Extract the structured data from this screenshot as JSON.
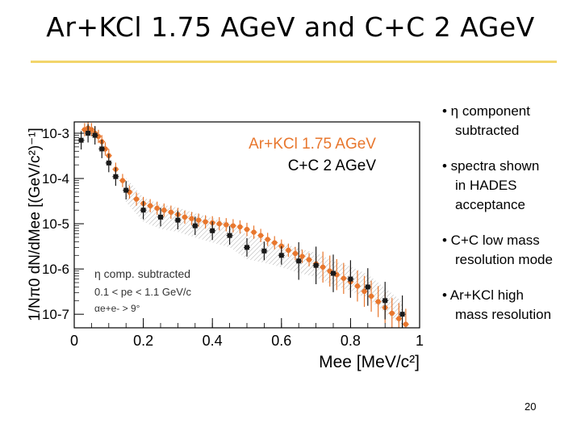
{
  "slide": {
    "title": "Ar+KCl  1.75 AGeV and C+C 2 AGeV",
    "page_number": "20",
    "bullets": [
      {
        "lines": [
          "η component",
          "subtracted"
        ]
      },
      {
        "lines": [
          "spectra shown",
          "in  HADES",
          "acceptance"
        ]
      },
      {
        "lines": [
          "C+C low mass",
          "resolution mode"
        ]
      },
      {
        "lines": [
          "Ar+KCl high",
          "mass resolution"
        ]
      }
    ]
  },
  "chart_data": {
    "type": "scatter",
    "xlabel": "Mee [MeV/c²]",
    "ylabel": "1/Nπ0 dN/dMee [(GeV/c²)⁻¹]",
    "xlim": [
      0,
      1
    ],
    "ylim_log10": [
      -7.3,
      -2.75
    ],
    "log_y": true,
    "x_ticks": [
      "0",
      "0.2",
      "0.4",
      "0.6",
      "0.8",
      "1"
    ],
    "y_ticks": [
      "10-3",
      "10-4",
      "10-5",
      "10-6",
      "10-7"
    ],
    "legend": {
      "placement": "top-right",
      "entries": [
        "Ar+KCl 1.75 AGeV",
        "C+C 2 AGeV"
      ]
    },
    "annotations": [
      "η comp. subtracted",
      "0.1 < pe < 1.1 GeV/c",
      "αe+e- > 9°"
    ],
    "colors": {
      "arkcl": "#e8772e",
      "cc": "#1a1a1a",
      "band": "#9a9a9a"
    },
    "series": [
      {
        "name": "Ar+KCl 1.75 AGeV",
        "color": "#e8772e",
        "x": [
          0.03,
          0.04,
          0.05,
          0.06,
          0.07,
          0.08,
          0.09,
          0.1,
          0.12,
          0.14,
          0.16,
          0.18,
          0.2,
          0.22,
          0.24,
          0.26,
          0.28,
          0.3,
          0.32,
          0.34,
          0.36,
          0.38,
          0.4,
          0.42,
          0.44,
          0.46,
          0.48,
          0.5,
          0.52,
          0.54,
          0.56,
          0.58,
          0.6,
          0.62,
          0.64,
          0.66,
          0.68,
          0.7,
          0.72,
          0.74,
          0.76,
          0.78,
          0.8,
          0.82,
          0.84,
          0.86,
          0.88,
          0.9,
          0.92,
          0.94,
          0.96,
          0.98
        ],
        "y": [
          0.0012,
          0.0013,
          0.0012,
          0.001,
          0.00085,
          0.00065,
          0.00045,
          0.00032,
          0.00016,
          9e-05,
          5e-05,
          3.5e-05,
          2.8e-05,
          2.5e-05,
          2.2e-05,
          2e-05,
          1.8e-05,
          1.6e-05,
          1.4e-05,
          1.3e-05,
          1.2e-05,
          1.1e-05,
          1.05e-05,
          1e-05,
          9.5e-06,
          9e-06,
          8.5e-06,
          7.5e-06,
          6.5e-06,
          5.5e-06,
          4.5e-06,
          3.8e-06,
          3.2e-06,
          2.6e-06,
          2.2e-06,
          1.9e-06,
          1.6e-06,
          1.3e-06,
          1.1e-06,
          9e-07,
          7.5e-07,
          6.2e-07,
          5.2e-07,
          4.2e-07,
          3.2e-07,
          2.5e-07,
          1.9e-07,
          1.4e-07,
          1.05e-07,
          8e-08,
          6e-08,
          4.5e-08
        ]
      },
      {
        "name": "C+C 2 AGeV",
        "color": "#1a1a1a",
        "x": [
          0.02,
          0.04,
          0.06,
          0.08,
          0.1,
          0.12,
          0.15,
          0.2,
          0.25,
          0.3,
          0.35,
          0.4,
          0.45,
          0.5,
          0.55,
          0.6,
          0.65,
          0.7,
          0.75,
          0.8,
          0.85,
          0.9,
          0.95
        ],
        "y": [
          0.0007,
          0.001,
          0.0009,
          0.00045,
          0.00022,
          0.00011,
          5.5e-05,
          2e-05,
          1.4e-05,
          1.2e-05,
          9e-06,
          7e-06,
          5.5e-06,
          3e-06,
          2.5e-06,
          2e-06,
          1.5e-06,
          1.2e-06,
          8e-07,
          6e-07,
          4e-07,
          2e-07,
          1e-07
        ]
      }
    ]
  }
}
